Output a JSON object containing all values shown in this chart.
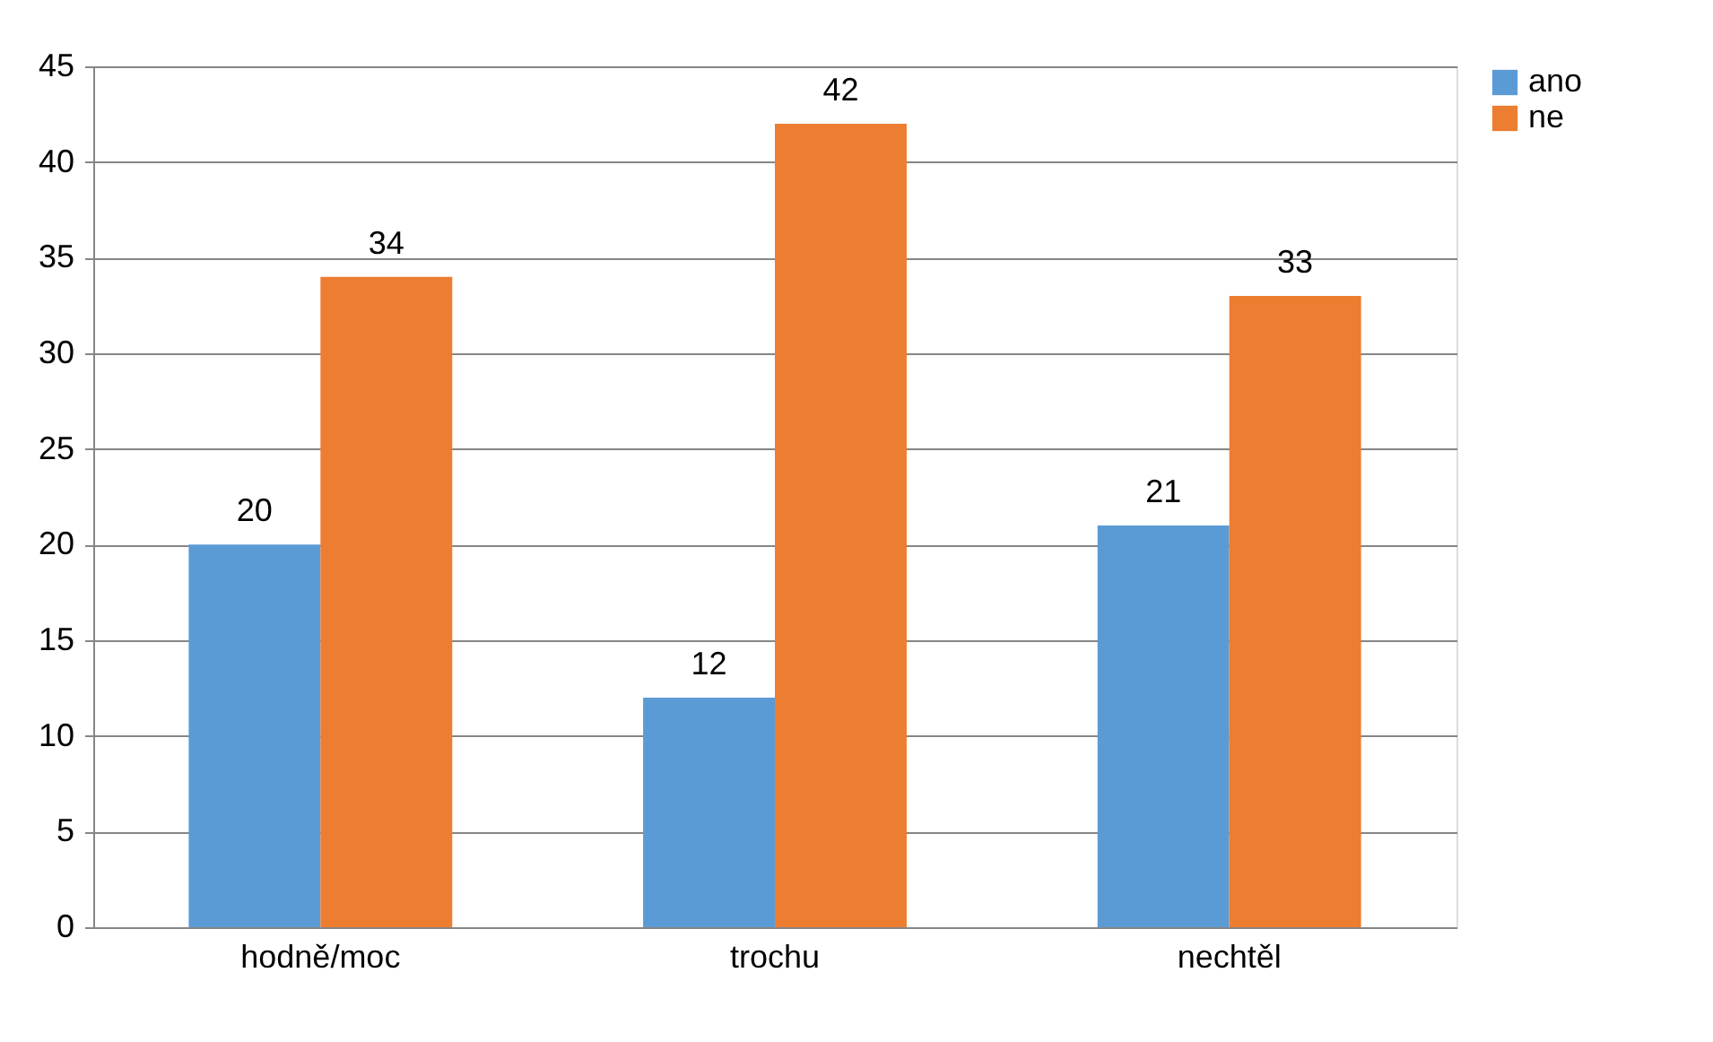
{
  "chart_data": {
    "type": "bar",
    "categories": [
      "hodně/moc",
      "trochu",
      "nechtěl"
    ],
    "series": [
      {
        "name": "ano",
        "color": "#5b9bd5",
        "values": [
          20,
          12,
          21
        ]
      },
      {
        "name": "ne",
        "color": "#ed7d31",
        "values": [
          34,
          42,
          33
        ]
      }
    ],
    "ylim": [
      0,
      45
    ],
    "yticks": [
      0,
      5,
      10,
      15,
      20,
      25,
      30,
      35,
      40,
      45
    ],
    "grid": "y",
    "legend": "right",
    "data_labels": true
  }
}
